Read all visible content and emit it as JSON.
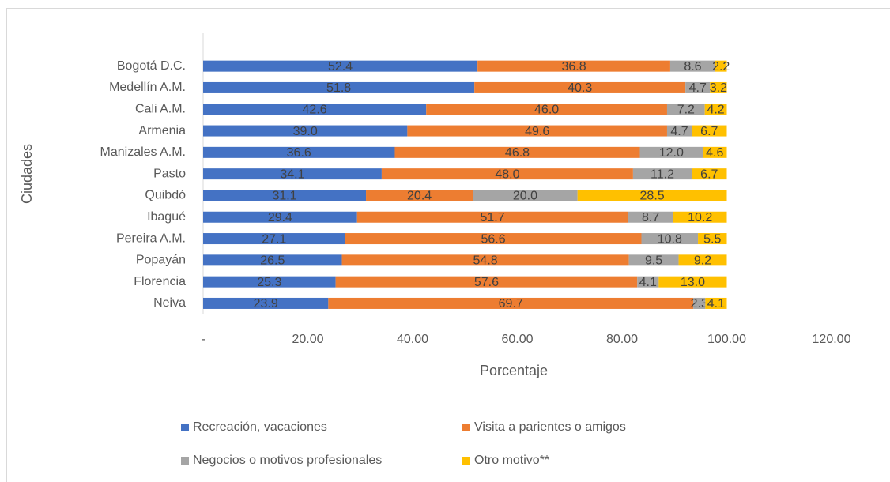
{
  "chart_data": {
    "type": "stacked-barh",
    "x_label": "Porcentaje",
    "y_label": "Ciudades",
    "categories": [
      "Bogotá D.C.",
      "Medellín A.M.",
      "Cali A.M.",
      "Armenia",
      "Manizales A.M.",
      "Pasto",
      "Quibdó",
      "Ibagué",
      "Pereira A.M.",
      "Popayán",
      "Florencia",
      "Neiva"
    ],
    "series": [
      {
        "name": "Recreación, vacaciones",
        "color": "#4472c4",
        "values": [
          52.4,
          51.8,
          42.6,
          39.0,
          36.6,
          34.1,
          31.1,
          29.4,
          27.1,
          26.5,
          25.3,
          23.9
        ],
        "value_labels": [
          "52.4",
          "51.8",
          "42.6",
          "39.0",
          "36.6",
          "34.1",
          "31.1",
          "29.4",
          "27.1",
          "26.5",
          "25.3",
          "23.9"
        ]
      },
      {
        "name": "Visita a parientes o amigos",
        "color": "#ed7d31",
        "values": [
          36.8,
          40.3,
          46.0,
          49.6,
          46.8,
          48.0,
          20.4,
          51.7,
          56.6,
          54.8,
          57.6,
          69.7
        ],
        "value_labels": [
          "36.8",
          "40.3",
          "46.0",
          "49.6",
          "46.8",
          "48.0",
          "20.4",
          "51.7",
          "56.6",
          "54.8",
          "57.6",
          "69.7"
        ]
      },
      {
        "name": "Negocios o motivos profesionales",
        "color": "#a5a5a5",
        "values": [
          8.6,
          4.7,
          7.2,
          4.7,
          12.0,
          11.2,
          20.0,
          8.7,
          10.8,
          9.5,
          4.1,
          2.3
        ],
        "value_labels": [
          "8.6",
          "4.7",
          "7.2",
          "4.7",
          "12.0",
          "11.2",
          "20.0",
          "8.7",
          "10.8",
          "9.5",
          "4.1",
          "2.3"
        ]
      },
      {
        "name": "Otro motivo**",
        "color": "#ffc000",
        "values": [
          2.2,
          3.2,
          4.2,
          6.7,
          4.6,
          6.7,
          28.5,
          10.2,
          5.5,
          9.2,
          13.0,
          4.1
        ],
        "value_labels": [
          "2.2",
          "3.2",
          "4.2",
          "6.7",
          "4.6",
          "6.7",
          "28.5",
          "10.2",
          "5.5",
          "9.2",
          "13.0",
          "4.1"
        ]
      }
    ],
    "xlim": [
      0,
      120
    ],
    "xticks": [
      {
        "value": 0,
        "label": "-"
      },
      {
        "value": 20,
        "label": "20.00"
      },
      {
        "value": 40,
        "label": "40.00"
      },
      {
        "value": 60,
        "label": "60.00"
      },
      {
        "value": 80,
        "label": "80.00"
      },
      {
        "value": 100,
        "label": "100.00"
      },
      {
        "value": 120,
        "label": "120.00"
      }
    ],
    "grid": false,
    "legend": "bottom"
  }
}
